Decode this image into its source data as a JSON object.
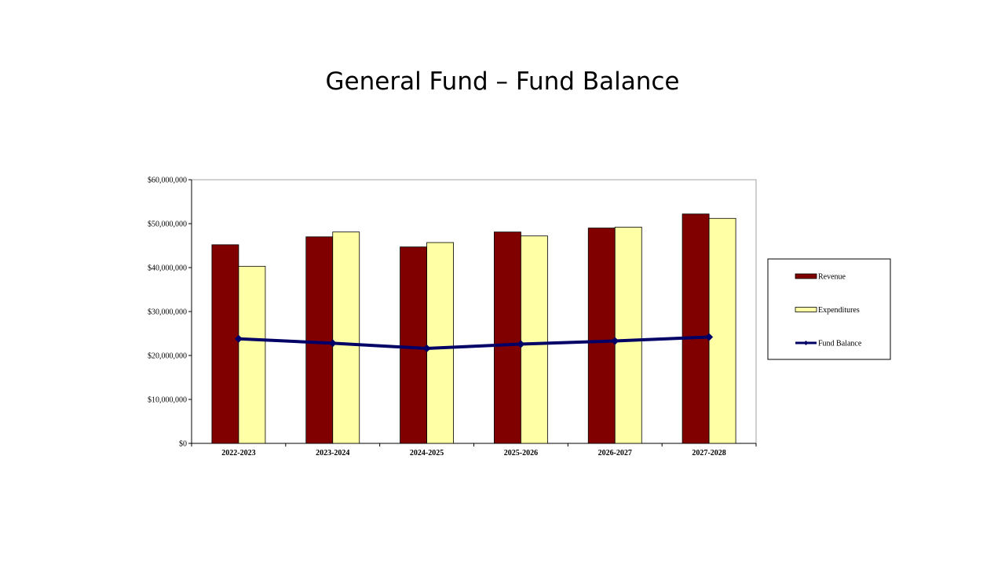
{
  "slide": {
    "title": "General Fund – Fund Balance"
  },
  "chart_data": {
    "type": "bar",
    "categories": [
      "2022-2023",
      "2023-2024",
      "2024-2025",
      "2025-2026",
      "2026-2027",
      "2027-2028"
    ],
    "series": [
      {
        "name": "Revenue",
        "type": "bar",
        "color": "#800000",
        "values": [
          45200000,
          47000000,
          44700000,
          48100000,
          49000000,
          52200000
        ]
      },
      {
        "name": "Expenditures",
        "type": "bar",
        "color": "#FFFFA6",
        "values": [
          40300000,
          48100000,
          45700000,
          47200000,
          49200000,
          51200000
        ]
      },
      {
        "name": "Fund Balance",
        "type": "line",
        "color": "#000066",
        "values": [
          23800000,
          22800000,
          21600000,
          22600000,
          23300000,
          24200000
        ]
      }
    ],
    "ylim": [
      0,
      60000000
    ],
    "yticks": [
      "$0",
      "$10,000,000",
      "$20,000,000",
      "$30,000,000",
      "$40,000,000",
      "$50,000,000",
      "$60,000,000"
    ],
    "ytick_values": [
      0,
      10000000,
      20000000,
      30000000,
      40000000,
      50000000,
      60000000
    ],
    "grid": false,
    "legend_position": "right"
  }
}
